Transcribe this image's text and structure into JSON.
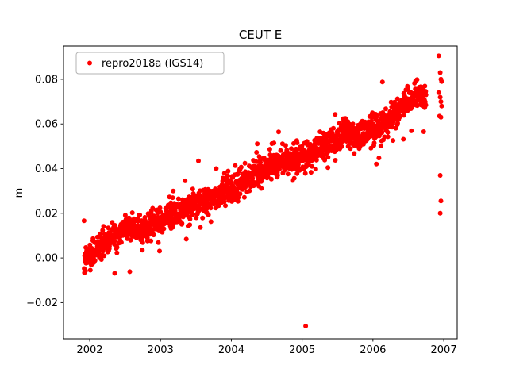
{
  "figure": {
    "title": "CEUT E",
    "background_color": "#ffffff",
    "point_color": "#ff0000"
  },
  "chart_data": {
    "type": "scatter",
    "title": "CEUT E",
    "xlabel": "",
    "ylabel": "m",
    "grid": false,
    "legend_position": "upper left",
    "legend_label": "repro2018a (IGS14)",
    "xlim": [
      2001.63,
      2007.19
    ],
    "ylim": [
      -0.0362,
      0.0949
    ],
    "xticks": [
      2002,
      2003,
      2004,
      2005,
      2006,
      2007
    ],
    "yticks": [
      -0.02,
      0,
      0.02,
      0.04,
      0.06,
      0.08
    ],
    "series": [
      {
        "name": "repro2018a (IGS14)",
        "color": "#ff0000",
        "marker": "circle",
        "marker_radius_px": 3,
        "trend_anchors": [
          [
            2001.92,
            -0.002
          ],
          [
            2002.1,
            0.004
          ],
          [
            2002.3,
            0.009
          ],
          [
            2002.55,
            0.014
          ],
          [
            2002.8,
            0.013
          ],
          [
            2003.0,
            0.017
          ],
          [
            2003.3,
            0.021
          ],
          [
            2003.6,
            0.025
          ],
          [
            2004.0,
            0.031
          ],
          [
            2004.45,
            0.04
          ],
          [
            2004.8,
            0.043
          ],
          [
            2005.1,
            0.047
          ],
          [
            2005.5,
            0.053
          ],
          [
            2005.6,
            0.057
          ],
          [
            2005.75,
            0.054
          ],
          [
            2006.0,
            0.058
          ],
          [
            2006.2,
            0.061
          ],
          [
            2006.45,
            0.068
          ],
          [
            2006.6,
            0.072
          ],
          [
            2006.75,
            0.073
          ]
        ],
        "generator": {
          "seed": 7,
          "n_points": 1750,
          "x_start": 2001.92,
          "x_end": 2006.75,
          "noise_sd": 0.003,
          "outlier_fraction": 0.04,
          "outlier_sd": 0.008
        },
        "sparse_points": [
          [
            2005.05,
            -0.0305
          ],
          [
            2006.93,
            0.0905
          ],
          [
            2006.95,
            0.083
          ],
          [
            2006.96,
            0.08
          ],
          [
            2006.97,
            0.079
          ],
          [
            2006.93,
            0.074
          ],
          [
            2006.95,
            0.072
          ],
          [
            2006.96,
            0.07
          ],
          [
            2006.97,
            0.068
          ],
          [
            2006.94,
            0.0635
          ],
          [
            2006.96,
            0.063
          ],
          [
            2006.95,
            0.037
          ],
          [
            2006.96,
            0.0255
          ],
          [
            2006.95,
            0.02
          ]
        ]
      }
    ]
  }
}
